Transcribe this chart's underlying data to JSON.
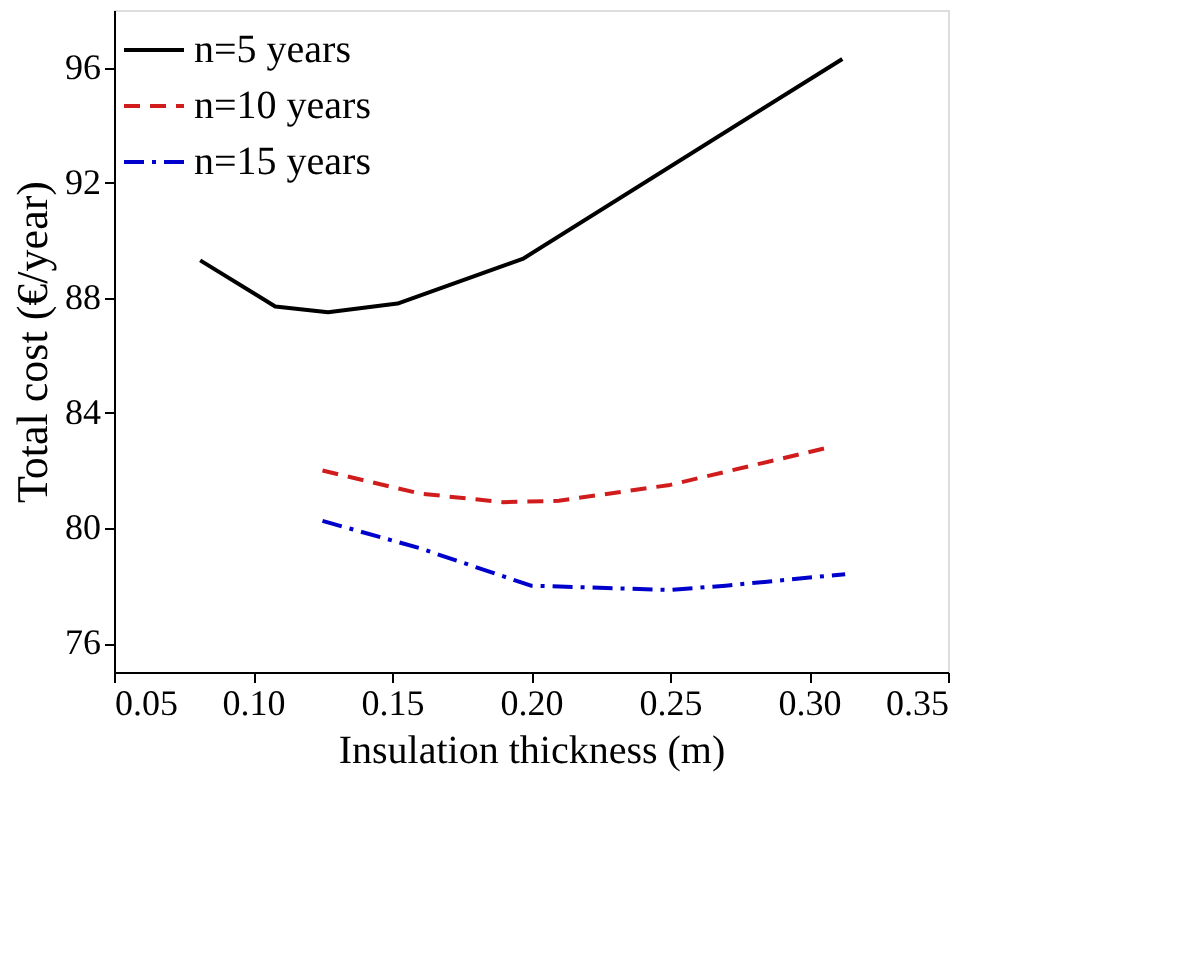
{
  "chart_data": {
    "type": "line",
    "xlabel": "Insulation thickness (m)",
    "ylabel": "Total cost (€/year)",
    "xlim": [
      0.05,
      0.35
    ],
    "xticks": [
      {
        "value": 0.05,
        "label": "0.05"
      },
      {
        "value": 0.1,
        "label": "0.10"
      },
      {
        "value": 0.15,
        "label": "0.15"
      },
      {
        "value": 0.2,
        "label": "0.20"
      },
      {
        "value": 0.25,
        "label": "0.25"
      },
      {
        "value": 0.3,
        "label": "0.30"
      },
      {
        "value": 0.35,
        "label": "0.35"
      }
    ],
    "ylim": [
      75,
      98
    ],
    "yticks": [
      76,
      80,
      84,
      88,
      92,
      96
    ],
    "grid": false,
    "legend": "top left",
    "marker": "none",
    "series": [
      {
        "name": "n=5 years",
        "color": "#000000",
        "line_style": "solid",
        "x": [
          0.081,
          0.108,
          0.127,
          0.152,
          0.197,
          0.312
        ],
        "values": [
          89.3,
          87.7,
          87.5,
          87.8,
          89.35,
          96.3
        ]
      },
      {
        "name": "n=10 years",
        "color": "#d01c1c",
        "line_style": "dashed",
        "x": [
          0.125,
          0.16,
          0.19,
          0.21,
          0.25,
          0.307
        ],
        "values": [
          82.0,
          81.2,
          80.9,
          80.95,
          81.5,
          82.8
        ]
      },
      {
        "name": "n=15 years",
        "color": "#0000cc",
        "line_style": "dashdot",
        "x": [
          0.125,
          0.16,
          0.2,
          0.25,
          0.27,
          0.313
        ],
        "values": [
          80.25,
          79.3,
          78.0,
          77.85,
          78.0,
          78.4
        ]
      }
    ]
  }
}
